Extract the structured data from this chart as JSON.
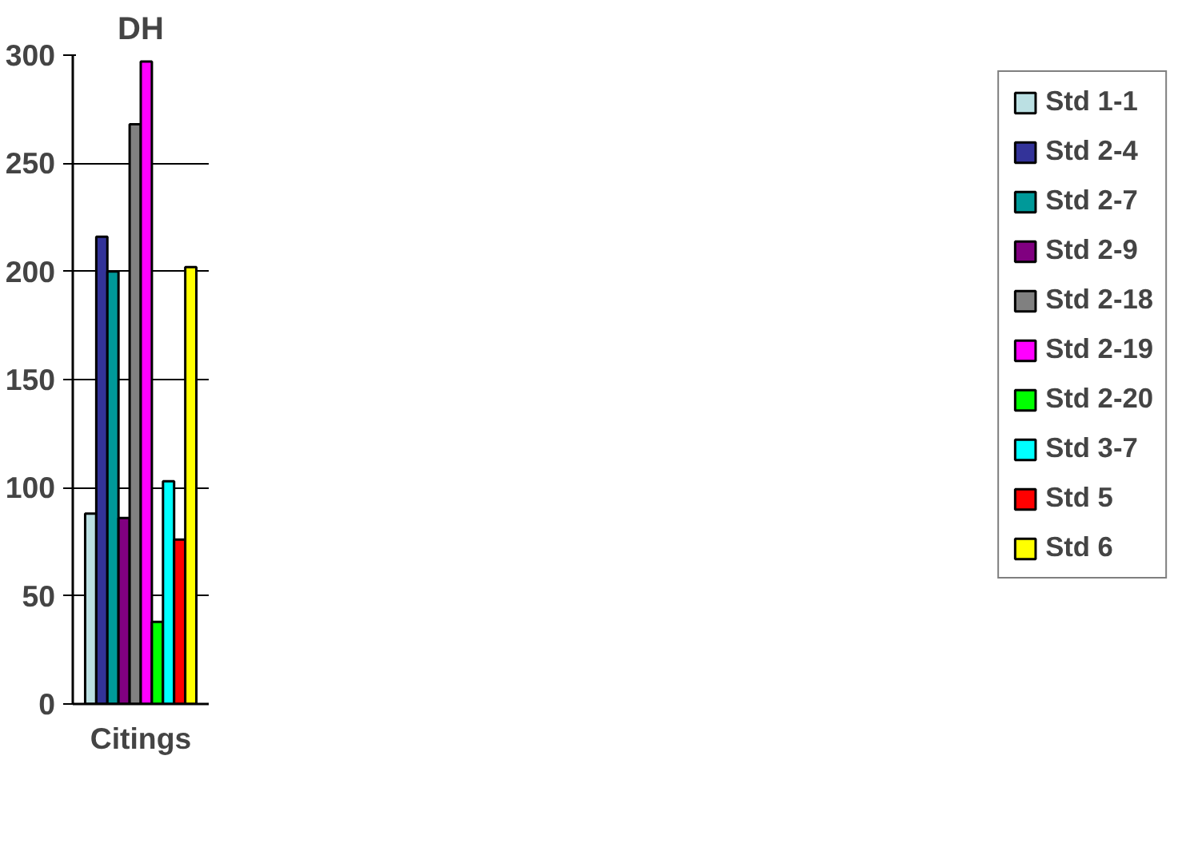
{
  "chart_data": {
    "type": "bar",
    "title": "DH",
    "categories": [
      "Citings"
    ],
    "series": [
      {
        "name": "Std 1-1",
        "color": "#bbe0e3",
        "values": [
          88
        ]
      },
      {
        "name": "Std 2-4",
        "color": "#333399",
        "values": [
          216
        ]
      },
      {
        "name": "Std 2-7",
        "color": "#009999",
        "values": [
          200
        ]
      },
      {
        "name": "Std 2-9",
        "color": "#800080",
        "values": [
          86
        ]
      },
      {
        "name": "Std 2-18",
        "color": "#808080",
        "values": [
          268
        ]
      },
      {
        "name": "Std 2-19",
        "color": "#ff00ff",
        "values": [
          297
        ]
      },
      {
        "name": "Std 2-20",
        "color": "#00ff00",
        "values": [
          38
        ]
      },
      {
        "name": "Std 3-7",
        "color": "#00ffff",
        "values": [
          103
        ]
      },
      {
        "name": "Std 5",
        "color": "#ff0000",
        "values": [
          76
        ]
      },
      {
        "name": "Std 6",
        "color": "#ffff00",
        "values": [
          202
        ]
      }
    ],
    "ylim": [
      0,
      300
    ],
    "yticks": [
      0,
      50,
      100,
      150,
      200,
      250,
      300
    ],
    "grid": "y",
    "legend": "right"
  }
}
